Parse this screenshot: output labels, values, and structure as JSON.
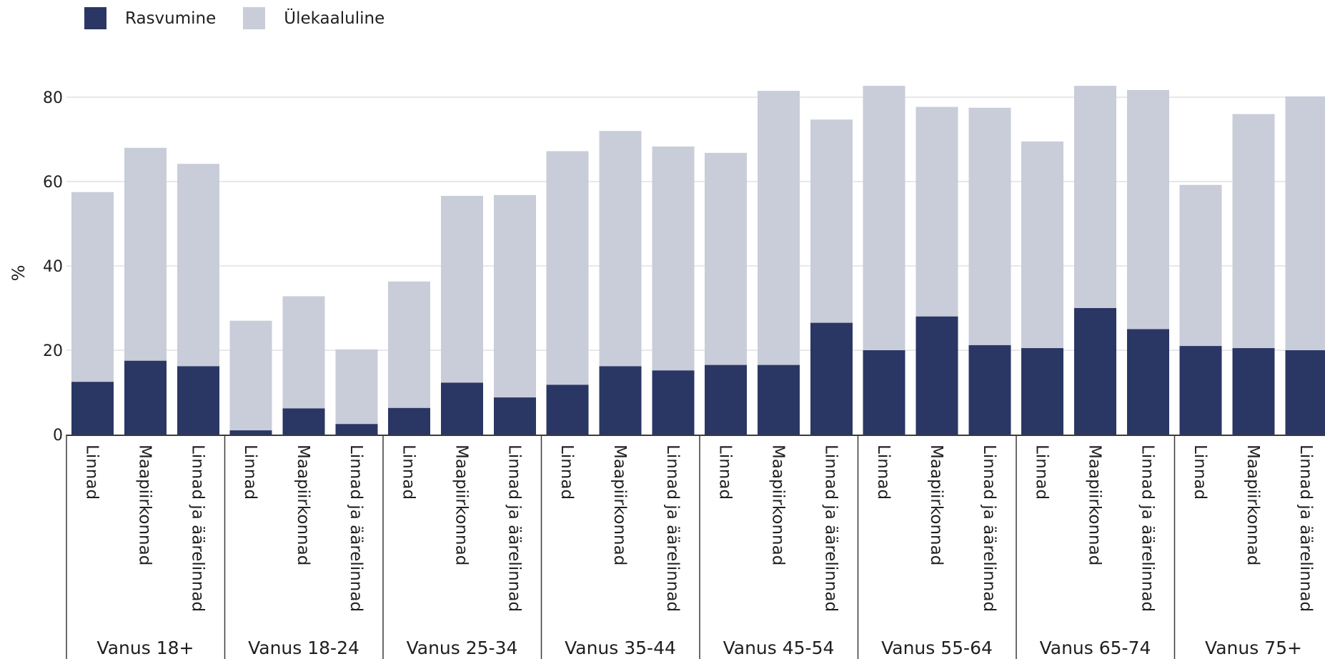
{
  "legend": {
    "obesity": "Rasvumine",
    "overweight": "Ülekaaluline"
  },
  "colors": {
    "obesity": "#2a3764",
    "overweight": "#c9ccd9",
    "grid": "#e8e8e8",
    "axis": "#3a3a3a"
  },
  "chart_data": {
    "type": "bar",
    "stacked": true,
    "ylabel": "%",
    "ylim": [
      0,
      80
    ],
    "yticks": [
      0,
      20,
      40,
      60,
      80
    ],
    "grid": true,
    "legend_position": "top-left",
    "groups": [
      {
        "label": "Vanus 18+",
        "categories": [
          "Linnad",
          "Maapiirkonnad",
          "Linnad ja äärelinnad"
        ],
        "obesity": [
          12.5,
          17.5,
          16.2
        ],
        "total": [
          57.5,
          68.0,
          64.2
        ]
      },
      {
        "label": "Vanus 18-24",
        "categories": [
          "Linnad",
          "Maapiirkonnad",
          "Linnad ja äärelinnad"
        ],
        "obesity": [
          1.0,
          6.2,
          2.5
        ],
        "total": [
          27.0,
          32.8,
          20.2
        ]
      },
      {
        "label": "Vanus 25-34",
        "categories": [
          "Linnad",
          "Maapiirkonnad",
          "Linnad ja äärelinnad"
        ],
        "obesity": [
          6.3,
          12.3,
          8.8
        ],
        "total": [
          36.3,
          56.6,
          56.8
        ]
      },
      {
        "label": "Vanus 35-44",
        "categories": [
          "Linnad",
          "Maapiirkonnad",
          "Linnad ja äärelinnad"
        ],
        "obesity": [
          11.8,
          16.2,
          15.2
        ],
        "total": [
          67.2,
          72.0,
          68.3
        ]
      },
      {
        "label": "Vanus 45-54",
        "categories": [
          "Linnad",
          "Maapiirkonnad",
          "Linnad ja äärelinnad"
        ],
        "obesity": [
          16.5,
          16.5,
          26.5
        ],
        "total": [
          66.8,
          81.5,
          74.7
        ]
      },
      {
        "label": "Vanus 55-64",
        "categories": [
          "Linnad",
          "Maapiirkonnad",
          "Linnad ja äärelinnad"
        ],
        "obesity": [
          20.0,
          28.0,
          21.2
        ],
        "total": [
          82.7,
          77.7,
          77.5
        ]
      },
      {
        "label": "Vanus 65-74",
        "categories": [
          "Linnad",
          "Maapiirkonnad",
          "Linnad ja äärelinnad"
        ],
        "obesity": [
          20.5,
          30.0,
          25.0
        ],
        "total": [
          69.5,
          82.7,
          81.7
        ]
      },
      {
        "label": "Vanus 75+",
        "categories": [
          "Linnad",
          "Maapiirkonnad",
          "Linnad ja äärelinnad"
        ],
        "obesity": [
          21.0,
          20.5,
          20.0
        ],
        "total": [
          59.2,
          76.0,
          80.2
        ]
      }
    ]
  }
}
